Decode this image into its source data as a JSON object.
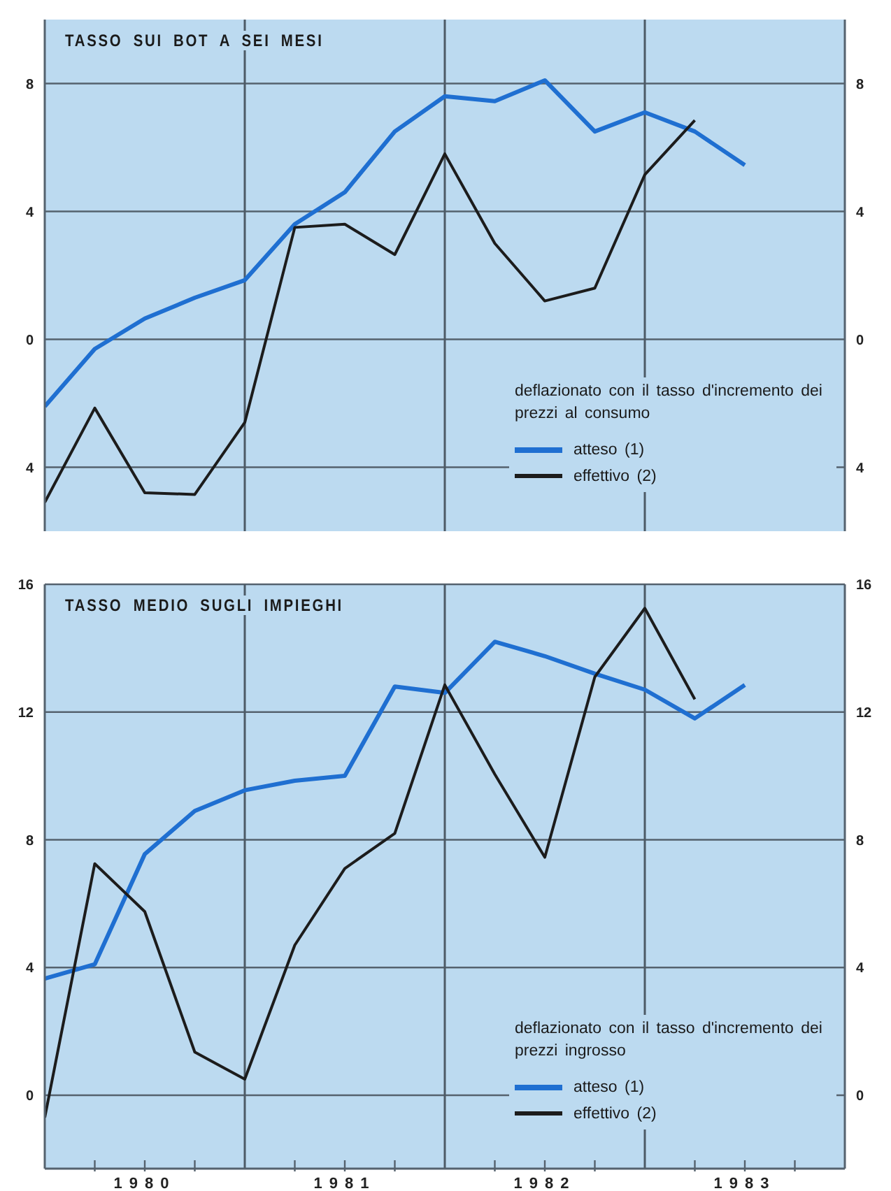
{
  "chart_data": [
    {
      "type": "line",
      "title": "TASSO SUI BOT A SEI MESI",
      "legend_title": "deflazionato con il tasso d'incremento dei prezzi al consumo",
      "x": [
        1980,
        1980.25,
        1980.5,
        1980.75,
        1981,
        1981.25,
        1981.5,
        1981.75,
        1982,
        1982.25,
        1982.5,
        1982.75,
        1983,
        1983.25,
        1983.5
      ],
      "series": [
        {
          "name": "atteso (1)",
          "color": "#1f6fd1",
          "values": [
            -2.1,
            -0.3,
            0.65,
            1.3,
            1.85,
            3.6,
            4.6,
            6.5,
            7.6,
            7.45,
            8.1,
            6.5,
            7.1,
            6.5,
            5.45
          ]
        },
        {
          "name": "effettivo (2)",
          "color": "#1c1c1c",
          "values": [
            -5.1,
            -2.15,
            -4.8,
            -4.85,
            -2.6,
            3.5,
            3.6,
            2.65,
            5.8,
            3.0,
            1.2,
            1.6,
            5.15,
            6.85,
            null
          ]
        }
      ],
      "xlim": [
        1980,
        1984
      ],
      "ylim": [
        -6,
        10
      ],
      "yticks": [
        {
          "value": -4,
          "label": "4"
        },
        0,
        4,
        8
      ],
      "y2lim": [
        -6,
        10
      ],
      "y2ticks": [
        {
          "value": -4,
          "label": "4"
        },
        0,
        4,
        8
      ],
      "ref_lines": [
        {
          "axis": "x",
          "value": 1981,
          "color": "#4d5a66"
        },
        {
          "axis": "x",
          "value": 1982,
          "color": "#4d5a66"
        },
        {
          "axis": "x",
          "value": 1983,
          "color": "#4d5a66"
        }
      ],
      "grid": "y",
      "legend": "bottom right",
      "tick_labels": "y",
      "line_style": "solid"
    },
    {
      "type": "line",
      "title": "TASSO MEDIO SUGLI IMPIEGHI",
      "legend_title": "deflazionato con il tasso d'incremento dei prezzi ingrosso",
      "x": [
        1980,
        1980.25,
        1980.5,
        1980.75,
        1981,
        1981.25,
        1981.5,
        1981.75,
        1982,
        1982.25,
        1982.5,
        1982.75,
        1983,
        1983.25,
        1983.5
      ],
      "series": [
        {
          "name": "atteso (1)",
          "color": "#1f6fd1",
          "values": [
            3.65,
            4.1,
            7.55,
            8.9,
            9.55,
            9.85,
            10.0,
            12.8,
            12.6,
            14.2,
            13.75,
            13.2,
            12.7,
            11.8,
            12.85
          ]
        },
        {
          "name": "effettivo (2)",
          "color": "#1c1c1c",
          "values": [
            -0.7,
            7.25,
            5.75,
            1.35,
            0.5,
            4.7,
            7.1,
            8.2,
            12.85,
            10.05,
            7.45,
            13.1,
            15.25,
            12.4,
            null
          ]
        }
      ],
      "xlim": [
        1980,
        1984
      ],
      "xticks": [
        {
          "value": 1980.25,
          "label": null
        },
        {
          "value": 1980.5,
          "label": "1980"
        },
        {
          "value": 1980.75,
          "label": null
        },
        {
          "value": 1981.25,
          "label": null
        },
        {
          "value": 1981.5,
          "label": "1981"
        },
        {
          "value": 1981.75,
          "label": null
        },
        {
          "value": 1982.25,
          "label": null
        },
        {
          "value": 1982.5,
          "label": "1982"
        },
        {
          "value": 1982.75,
          "label": null
        },
        {
          "value": 1983.25,
          "label": null
        },
        {
          "value": 1983.5,
          "label": "1983"
        },
        {
          "value": 1983.75,
          "label": null
        }
      ],
      "ylim": [
        -2.3,
        16
      ],
      "yticks": [
        0,
        4,
        8,
        12,
        16
      ],
      "y2lim": [
        -2.3,
        16
      ],
      "y2ticks": [
        0,
        4,
        8,
        12,
        16
      ],
      "ref_lines": [
        {
          "axis": "x",
          "value": 1981,
          "color": "#4d5a66"
        },
        {
          "axis": "x",
          "value": 1982,
          "color": "#4d5a66"
        },
        {
          "axis": "x",
          "value": 1983,
          "color": "#4d5a66"
        }
      ],
      "grid": "y",
      "legend": "bottom right",
      "line_style": "solid"
    }
  ]
}
